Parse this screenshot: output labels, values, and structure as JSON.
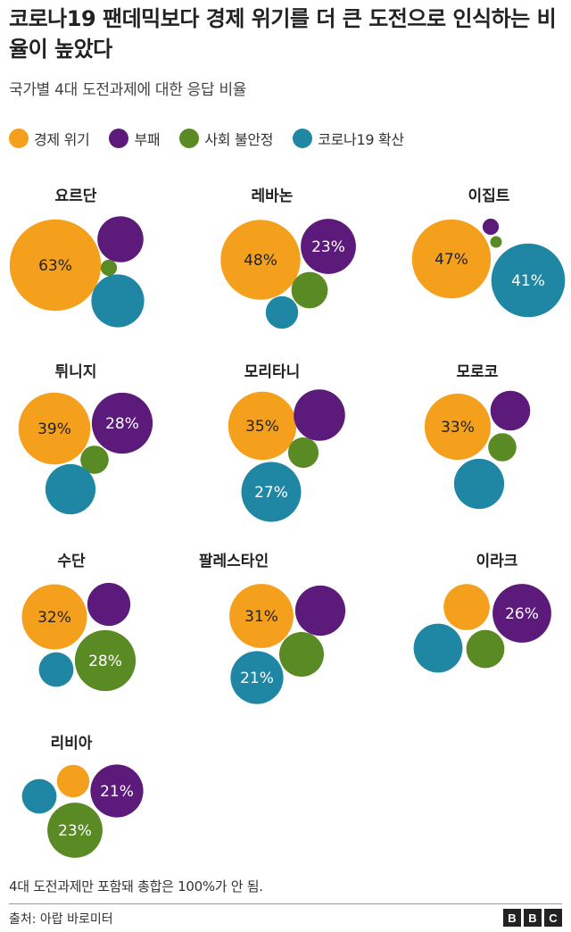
{
  "title": "코로나19 팬데믹보다 경제 위기를 더 큰 도전으로 인식하는 비율이 높았다",
  "subtitle": "국가별 4대 도전과제에 대한 응답 비율",
  "footnote": "4대 도전과제만 포함돼 총합은 100%가 안 됨.",
  "source": "출처: 아랍 바로미터",
  "logo": [
    "B",
    "B",
    "C"
  ],
  "colors": {
    "economy": "#f5a01c",
    "corruption": "#5c1a7a",
    "instability": "#5a8a23",
    "covid": "#1f87a3"
  },
  "chart_data": {
    "type": "bubble",
    "series": [
      {
        "name": "경제 위기",
        "key": "economy",
        "color": "#f5a01c"
      },
      {
        "name": "부패",
        "key": "corruption",
        "color": "#5c1a7a"
      },
      {
        "name": "사회 불안정",
        "key": "instability",
        "color": "#5a8a23"
      },
      {
        "name": "코로나19 확산",
        "key": "covid",
        "color": "#1f87a3"
      }
    ],
    "countries": [
      {
        "name": "요르단",
        "economy": 63,
        "corruption": 16,
        "instability": 2,
        "covid": 21,
        "labeled": [
          "economy"
        ]
      },
      {
        "name": "레바논",
        "economy": 48,
        "corruption": 23,
        "instability": 10,
        "covid": 8,
        "labeled": [
          "economy",
          "corruption"
        ]
      },
      {
        "name": "이집트",
        "economy": 47,
        "corruption": 2,
        "instability": 1,
        "covid": 41,
        "labeled": [
          "economy",
          "covid"
        ]
      },
      {
        "name": "튀니지",
        "economy": 39,
        "corruption": 28,
        "instability": 6,
        "covid": 19,
        "labeled": [
          "economy",
          "corruption"
        ]
      },
      {
        "name": "모리타니",
        "economy": 35,
        "corruption": 20,
        "instability": 7,
        "covid": 27,
        "labeled": [
          "economy",
          "covid"
        ]
      },
      {
        "name": "모로코",
        "economy": 33,
        "corruption": 12,
        "instability": 6,
        "covid": 19,
        "labeled": [
          "economy"
        ]
      },
      {
        "name": "수단",
        "economy": 32,
        "corruption": 14,
        "instability": 28,
        "covid": 9,
        "labeled": [
          "economy",
          "instability"
        ]
      },
      {
        "name": "팔레스타인",
        "economy": 31,
        "corruption": 19,
        "instability": 15,
        "covid": 21,
        "labeled": [
          "economy",
          "covid"
        ]
      },
      {
        "name": "이라크",
        "economy": 16,
        "corruption": 26,
        "instability": 11,
        "covid": 18,
        "labeled": [
          "corruption"
        ]
      },
      {
        "name": "리비아",
        "economy": 8,
        "corruption": 21,
        "instability": 23,
        "covid": 9,
        "labeled": [
          "corruption",
          "instability"
        ]
      }
    ]
  }
}
